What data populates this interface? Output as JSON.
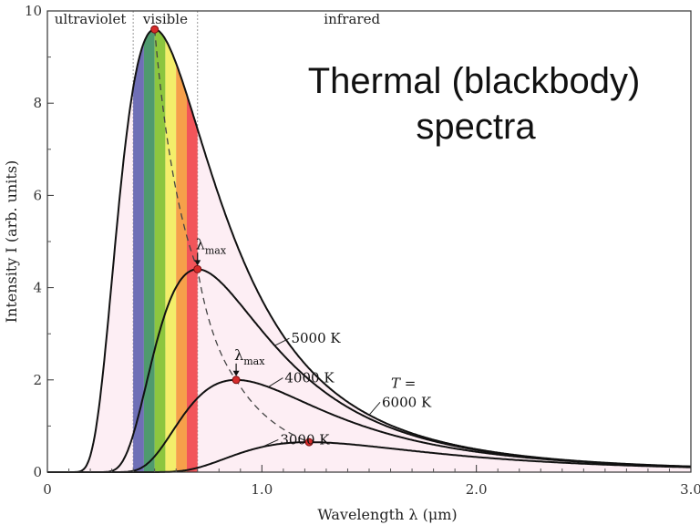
{
  "chart_data": {
    "type": "line",
    "title": [
      "Thermal (blackbody)",
      "spectra"
    ],
    "xlabel": "Wavelength λ (μm)",
    "ylabel": "Intensity I (arb. units)",
    "xlim": [
      0,
      3.0
    ],
    "ylim": [
      0,
      10
    ],
    "xticks": [
      {
        "value": 0,
        "label": "0"
      },
      {
        "value": 1.0,
        "label": "1.0"
      },
      {
        "value": 2.0,
        "label": "2.0"
      },
      {
        "value": 3.0,
        "label": "3.0"
      }
    ],
    "yticks": [
      {
        "value": 0,
        "label": "0"
      },
      {
        "value": 2,
        "label": "2"
      },
      {
        "value": 4,
        "label": "4"
      },
      {
        "value": 6,
        "label": "6"
      },
      {
        "value": 8,
        "label": "8"
      },
      {
        "value": 10,
        "label": "10"
      }
    ],
    "regions": [
      {
        "label": "ultraviolet",
        "from": 0,
        "to": 0.4
      },
      {
        "label": "visible",
        "from": 0.4,
        "to": 0.7
      },
      {
        "label": "infrared",
        "from": 0.7,
        "to": 3.0
      }
    ],
    "spectrum_bands": [
      {
        "from": 0.4,
        "to": 0.45,
        "color": "#6f6fb6"
      },
      {
        "from": 0.45,
        "to": 0.5,
        "color": "#4f9a6e"
      },
      {
        "from": 0.5,
        "to": 0.55,
        "color": "#8cc63f"
      },
      {
        "from": 0.55,
        "to": 0.6,
        "color": "#f3ee6a"
      },
      {
        "from": 0.6,
        "to": 0.65,
        "color": "#f6a04a"
      },
      {
        "from": 0.65,
        "to": 0.7,
        "color": "#f2555a"
      }
    ],
    "temperature_prefix": "T =",
    "series": [
      {
        "name": "6000 K",
        "temperature": 6000,
        "peak_x": 0.5,
        "peak_y": 9.6
      },
      {
        "name": "5000 K",
        "temperature": 5000,
        "peak_x": 0.7,
        "peak_y": 4.4
      },
      {
        "name": "4000 K",
        "temperature": 4000,
        "peak_x": 0.88,
        "peak_y": 2.0
      },
      {
        "name": "3000 K",
        "temperature": 3000,
        "peak_x": 1.22,
        "peak_y": 0.65
      }
    ],
    "peak_annotation": "λ",
    "peak_annotation_sub": "max",
    "colors": {
      "curve": "#111111",
      "fill": "#fdeef4",
      "peak_marker": "#d62b2b",
      "plot_border": "#333333"
    }
  }
}
